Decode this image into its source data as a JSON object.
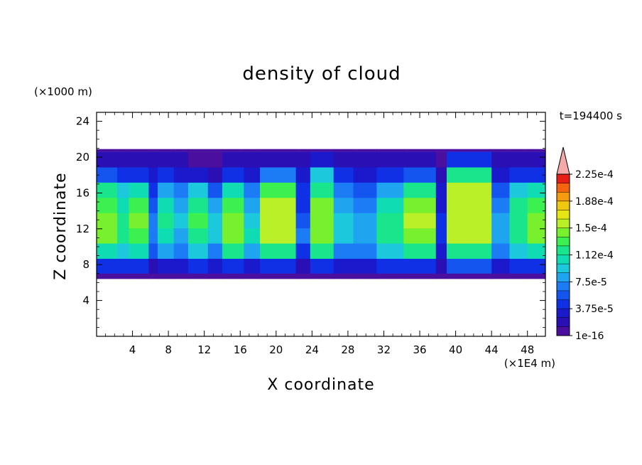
{
  "chart_data": {
    "type": "heatmap",
    "title": "density of cloud",
    "xlabel": "X coordinate",
    "ylabel": "Z coordinate",
    "x_unit": "(×1E4 m)",
    "y_unit": "(×1000 m)",
    "time_label": "t=194400 s",
    "xlim": [
      0,
      50
    ],
    "ylim": [
      0,
      25
    ],
    "x_ticks": [
      4,
      8,
      12,
      16,
      20,
      24,
      28,
      32,
      36,
      40,
      44,
      48
    ],
    "y_ticks": [
      4,
      8,
      12,
      16,
      20,
      24
    ],
    "grid": false,
    "cloud_base": 7,
    "cloud_top": 20.6,
    "colorbar": {
      "labels": [
        "1e-16",
        "3.75e-5",
        "7.5e-5",
        "1.12e-4",
        "1.5e-4",
        "1.88e-4",
        "2.25e-4"
      ],
      "level_count": 18,
      "has_overflow_arrow": true,
      "colors": [
        "#4b0fa0",
        "#2a0fb4",
        "#1a1acc",
        "#1030e6",
        "#1455f0",
        "#1c7cf5",
        "#1fa5f0",
        "#1cc8dc",
        "#10dcb4",
        "#19e68c",
        "#3cf050",
        "#78f02d",
        "#b9f028",
        "#e6e614",
        "#f0c80f",
        "#f59b0f",
        "#f5640f",
        "#e61e14"
      ],
      "overflow_color": "#f5aaaa"
    },
    "columns": [
      {
        "x0": 0.0,
        "x1": 2.3,
        "v": [
          0.2,
          0.45,
          0.62,
          0.62,
          0.58,
          0.5,
          0.25,
          0.1
        ]
      },
      {
        "x0": 2.3,
        "x1": 3.6,
        "v": [
          0.18,
          0.4,
          0.55,
          0.55,
          0.48,
          0.4,
          0.2,
          0.08
        ]
      },
      {
        "x0": 3.6,
        "x1": 5.8,
        "v": [
          0.2,
          0.45,
          0.6,
          0.62,
          0.58,
          0.48,
          0.22,
          0.1
        ]
      },
      {
        "x0": 5.8,
        "x1": 6.8,
        "v": [
          0.1,
          0.25,
          0.3,
          0.28,
          0.25,
          0.2,
          0.12,
          0.06
        ]
      },
      {
        "x0": 6.8,
        "x1": 8.6,
        "v": [
          0.15,
          0.35,
          0.48,
          0.5,
          0.45,
          0.38,
          0.18,
          0.08
        ]
      },
      {
        "x0": 8.6,
        "x1": 10.2,
        "v": [
          0.12,
          0.28,
          0.38,
          0.4,
          0.36,
          0.3,
          0.14,
          0.06
        ]
      },
      {
        "x0": 10.2,
        "x1": 12.4,
        "v": [
          0.18,
          0.42,
          0.55,
          0.58,
          0.52,
          0.4,
          0.16,
          0.05
        ]
      },
      {
        "x0": 12.4,
        "x1": 14.0,
        "v": [
          0.14,
          0.32,
          0.42,
          0.4,
          0.35,
          0.25,
          0.1,
          0.04
        ]
      },
      {
        "x0": 14.0,
        "x1": 16.4,
        "v": [
          0.22,
          0.5,
          0.66,
          0.66,
          0.6,
          0.45,
          0.18,
          0.06
        ]
      },
      {
        "x0": 16.4,
        "x1": 18.2,
        "v": [
          0.15,
          0.34,
          0.45,
          0.42,
          0.36,
          0.28,
          0.15,
          0.06
        ]
      },
      {
        "x0": 18.2,
        "x1": 22.2,
        "v": [
          0.22,
          0.5,
          0.68,
          0.7,
          0.68,
          0.6,
          0.3,
          0.1
        ]
      },
      {
        "x0": 22.2,
        "x1": 23.8,
        "v": [
          0.1,
          0.22,
          0.28,
          0.25,
          0.22,
          0.18,
          0.12,
          0.06
        ]
      },
      {
        "x0": 23.8,
        "x1": 26.4,
        "v": [
          0.22,
          0.5,
          0.66,
          0.66,
          0.62,
          0.55,
          0.4,
          0.12
        ]
      },
      {
        "x0": 26.4,
        "x1": 28.6,
        "v": [
          0.15,
          0.32,
          0.42,
          0.4,
          0.35,
          0.28,
          0.18,
          0.08
        ]
      },
      {
        "x0": 28.6,
        "x1": 31.2,
        "v": [
          0.14,
          0.3,
          0.38,
          0.36,
          0.3,
          0.24,
          0.15,
          0.06
        ]
      },
      {
        "x0": 31.2,
        "x1": 34.2,
        "v": [
          0.18,
          0.42,
          0.55,
          0.55,
          0.48,
          0.38,
          0.2,
          0.08
        ]
      },
      {
        "x0": 34.2,
        "x1": 37.8,
        "v": [
          0.22,
          0.5,
          0.66,
          0.68,
          0.64,
          0.55,
          0.25,
          0.1
        ]
      },
      {
        "x0": 37.8,
        "x1": 39.0,
        "v": [
          0.08,
          0.15,
          0.2,
          0.18,
          0.15,
          0.12,
          0.08,
          0.05
        ]
      },
      {
        "x0": 39.0,
        "x1": 44.0,
        "v": [
          0.24,
          0.52,
          0.7,
          0.72,
          0.72,
          0.68,
          0.55,
          0.22
        ]
      },
      {
        "x0": 44.0,
        "x1": 46.0,
        "v": [
          0.12,
          0.28,
          0.36,
          0.34,
          0.3,
          0.25,
          0.15,
          0.06
        ]
      },
      {
        "x0": 46.0,
        "x1": 48.0,
        "v": [
          0.18,
          0.42,
          0.55,
          0.55,
          0.5,
          0.4,
          0.22,
          0.08
        ]
      },
      {
        "x0": 48.0,
        "x1": 50.0,
        "v": [
          0.2,
          0.46,
          0.62,
          0.62,
          0.58,
          0.46,
          0.22,
          0.08
        ]
      }
    ]
  }
}
